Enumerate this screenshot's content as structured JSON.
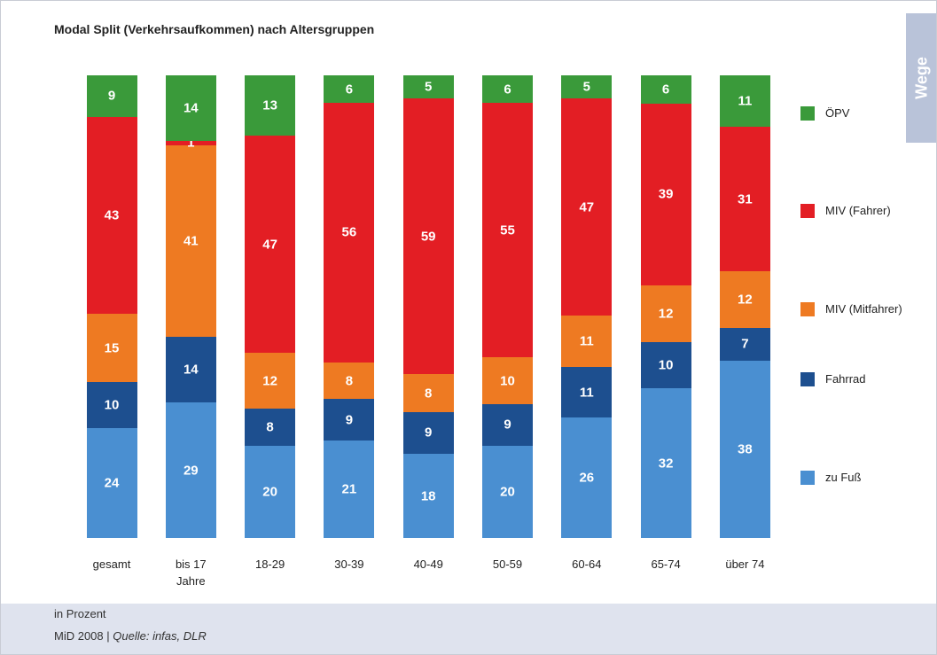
{
  "chart_data": {
    "type": "stacked_bar_100",
    "title": "Modal Split (Verkehrsaufkommen) nach Altersgruppen",
    "tab": "Wege",
    "categories": [
      "gesamt",
      "bis 17 Jahre",
      "18-29",
      "30-39",
      "40-49",
      "50-59",
      "60-64",
      "65-74",
      "über 74"
    ],
    "series": [
      {
        "name": "zu Fuß",
        "color": "#4a8fd1",
        "values": [
          24,
          29,
          20,
          21,
          18,
          20,
          26,
          32,
          38
        ]
      },
      {
        "name": "Fahrrad",
        "color": "#1d4f8f",
        "values": [
          10,
          14,
          8,
          9,
          9,
          9,
          11,
          10,
          7
        ]
      },
      {
        "name": "MIV (Mitfahrer)",
        "color": "#ee7a22",
        "values": [
          15,
          41,
          12,
          8,
          8,
          10,
          11,
          12,
          12
        ]
      },
      {
        "name": "MIV (Fahrer)",
        "color": "#e31e24",
        "values": [
          43,
          1,
          47,
          56,
          59,
          55,
          47,
          39,
          31
        ]
      },
      {
        "name": "ÖPV",
        "color": "#3a9a3a",
        "values": [
          9,
          14,
          13,
          6,
          5,
          6,
          5,
          6,
          11
        ]
      }
    ],
    "note": "in Prozent",
    "source_prefix": "MiD 2008 |",
    "source": "Quelle: infas, DLR"
  }
}
